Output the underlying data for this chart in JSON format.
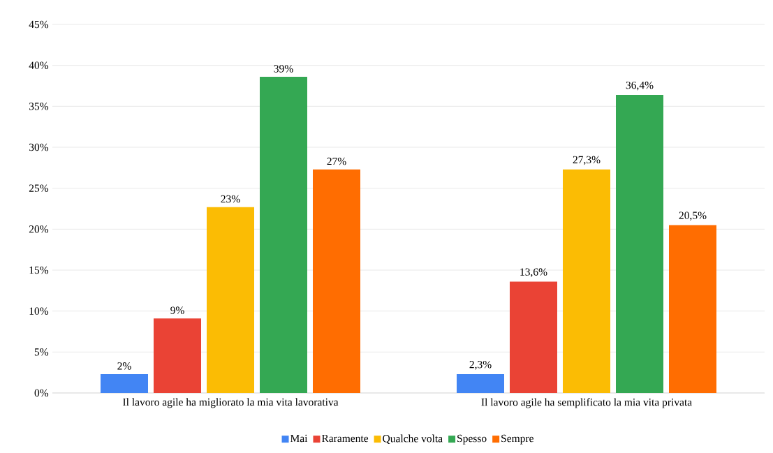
{
  "chart_data": {
    "type": "bar",
    "categories": [
      "Il lavoro agile ha migliorato la mia vita lavorativa",
      "Il lavoro agile ha semplificato la mia vita privata"
    ],
    "series": [
      {
        "name": "Mai",
        "color": "#4285f4",
        "values": [
          2.3,
          2.3
        ],
        "value_labels": [
          "2%",
          "2,3%"
        ]
      },
      {
        "name": "Raramente",
        "color": "#ea4335",
        "values": [
          9.1,
          13.6
        ],
        "value_labels": [
          "9%",
          "13,6%"
        ]
      },
      {
        "name": "Qualche volta",
        "color": "#fbbc04",
        "values": [
          22.7,
          27.3
        ],
        "value_labels": [
          "23%",
          "27,3%"
        ]
      },
      {
        "name": "Spesso",
        "color": "#34a853",
        "values": [
          38.6,
          36.4
        ],
        "value_labels": [
          "39%",
          "36,4%"
        ]
      },
      {
        "name": "Sempre",
        "color": "#ff6d01",
        "values": [
          27.3,
          20.5
        ],
        "value_labels": [
          "27%",
          "20,5%"
        ]
      }
    ],
    "ylim": [
      0,
      45
    ],
    "yticks": [
      {
        "value": 0,
        "label": "0%"
      },
      {
        "value": 5,
        "label": "5%"
      },
      {
        "value": 10,
        "label": "10%"
      },
      {
        "value": 15,
        "label": "15%"
      },
      {
        "value": 20,
        "label": "20%"
      },
      {
        "value": 25,
        "label": "25%"
      },
      {
        "value": 30,
        "label": "30%"
      },
      {
        "value": 35,
        "label": "35%"
      },
      {
        "value": 40,
        "label": "40%"
      },
      {
        "value": 45,
        "label": "45%"
      }
    ],
    "grid": "y",
    "legend": "bottom"
  }
}
